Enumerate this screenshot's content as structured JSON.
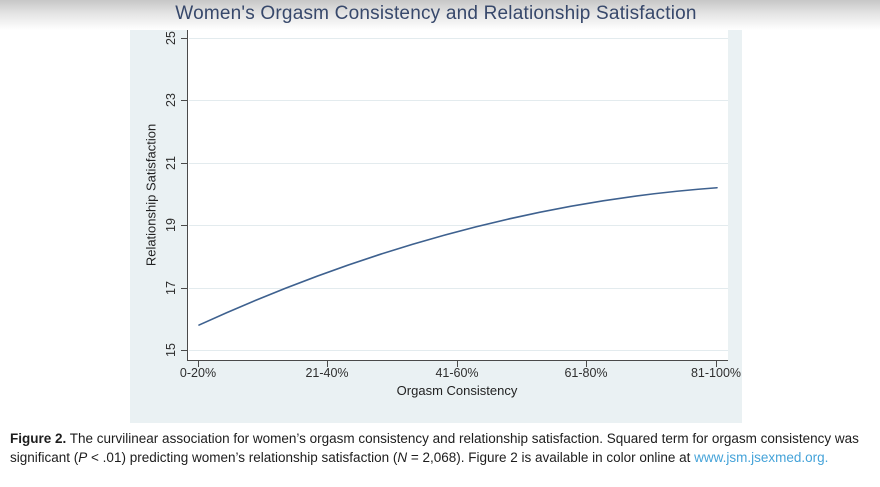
{
  "figure": {
    "title": "Women's Orgasm Consistency and Relationship Satisfaction",
    "y_axis": {
      "label": "Relationship Satisfaction",
      "ticks": [
        "25",
        "23",
        "21",
        "19",
        "17",
        "15"
      ]
    },
    "x_axis": {
      "label": "Orgasm Consistency",
      "ticks": [
        "0-20%",
        "21-40%",
        "41-60%",
        "61-80%",
        "81-100%"
      ]
    }
  },
  "caption": {
    "label": "Figure 2.",
    "text_1": " The curvilinear association for women’s orgasm consistency and relationship satisfaction. Squared term for orgasm consistency was significant (",
    "p_symbol": "P",
    "text_2": " < .01) predicting women’s relationship satisfaction (",
    "n_symbol": "N",
    "text_3": " = 2,068). Figure 2 is available in color online at ",
    "link": "www.jsm.jsexmed.org."
  },
  "colors": {
    "title": "#37486b",
    "figure_background": "#eaf1f3",
    "plot_background": "#ffffff",
    "gridline": "#e3ebee",
    "axis": "#4a4a4a",
    "line": "#3e618f",
    "link": "#45a3d9",
    "caption_text": "#1d1d1d"
  },
  "chart_data": {
    "type": "line",
    "title": "Women's Orgasm Consistency and Relationship Satisfaction",
    "xlabel": "Orgasm Consistency",
    "ylabel": "Relationship Satisfaction",
    "categories": [
      "0-20%",
      "21-40%",
      "41-60%",
      "61-80%",
      "81-100%"
    ],
    "values": [
      15.8,
      17.4,
      18.8,
      19.7,
      20.2
    ],
    "y_ticks": [
      15,
      17,
      19,
      21,
      23,
      25
    ],
    "ylim": [
      14.7,
      25.3
    ],
    "grid": "horizontal",
    "legend_position": "none",
    "shape": "concave-down quadratic (curvilinear), single unlabeled series"
  }
}
